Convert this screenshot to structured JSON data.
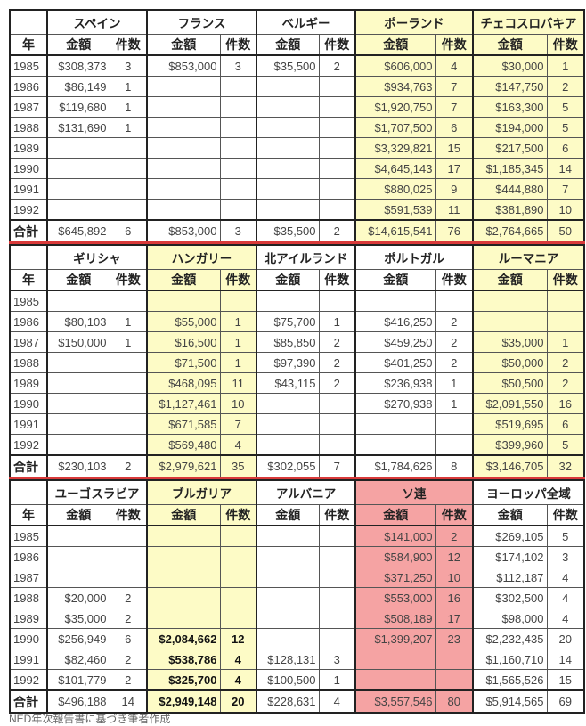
{
  "labels": {
    "year": "年",
    "amount": "金額",
    "count": "件数",
    "total": "合計"
  },
  "years": [
    "1985",
    "1986",
    "1987",
    "1988",
    "1989",
    "1990",
    "1991",
    "1992"
  ],
  "colors": {
    "yellow": "#fdfbc6",
    "red": "#f5a3a3"
  },
  "blocks": [
    {
      "countries": [
        {
          "name": "スペイン",
          "highlight": null,
          "amounts": [
            "$308,373",
            "$86,149",
            "$119,680",
            "$131,690",
            "",
            "",
            "",
            ""
          ],
          "counts": [
            "3",
            "1",
            "1",
            "1",
            "",
            "",
            "",
            ""
          ],
          "total_amount": "$645,892",
          "total_count": "6"
        },
        {
          "name": "フランス",
          "highlight": null,
          "amounts": [
            "$853,000",
            "",
            "",
            "",
            "",
            "",
            "",
            ""
          ],
          "counts": [
            "3",
            "",
            "",
            "",
            "",
            "",
            "",
            ""
          ],
          "total_amount": "$853,000",
          "total_count": "3"
        },
        {
          "name": "ベルギー",
          "highlight": null,
          "amounts": [
            "$35,500",
            "",
            "",
            "",
            "",
            "",
            "",
            ""
          ],
          "counts": [
            "2",
            "",
            "",
            "",
            "",
            "",
            "",
            ""
          ],
          "total_amount": "$35,500",
          "total_count": "2"
        },
        {
          "name": "ポーランド",
          "highlight": "yellow",
          "amounts": [
            "$606,000",
            "$934,763",
            "$1,920,750",
            "$1,707,500",
            "$3,329,821",
            "$4,645,143",
            "$880,025",
            "$591,539"
          ],
          "counts": [
            "4",
            "7",
            "7",
            "6",
            "15",
            "17",
            "9",
            "11"
          ],
          "total_amount": "$14,615,541",
          "total_count": "76"
        },
        {
          "name": "チェコスロバキア",
          "highlight": "yellow",
          "amounts": [
            "$30,000",
            "$147,750",
            "$163,300",
            "$194,000",
            "$217,500",
            "$1,185,345",
            "$444,880",
            "$381,890"
          ],
          "counts": [
            "1",
            "2",
            "5",
            "5",
            "6",
            "14",
            "7",
            "10"
          ],
          "total_amount": "$2,764,665",
          "total_count": "50"
        }
      ]
    },
    {
      "countries": [
        {
          "name": "ギリシャ",
          "highlight": null,
          "amounts": [
            "",
            "$80,103",
            "$150,000",
            "",
            "",
            "",
            "",
            ""
          ],
          "counts": [
            "",
            "1",
            "1",
            "",
            "",
            "",
            "",
            ""
          ],
          "total_amount": "$230,103",
          "total_count": "2"
        },
        {
          "name": "ハンガリー",
          "highlight": "yellow",
          "amounts": [
            "",
            "$55,000",
            "$16,500",
            "$71,500",
            "$468,095",
            "$1,127,461",
            "$671,585",
            "$569,480"
          ],
          "counts": [
            "",
            "1",
            "1",
            "1",
            "11",
            "10",
            "7",
            "4"
          ],
          "total_amount": "$2,979,621",
          "total_count": "35"
        },
        {
          "name": "北アイルランド",
          "highlight": null,
          "amounts": [
            "",
            "$75,700",
            "$85,850",
            "$97,390",
            "$43,115",
            "",
            "",
            ""
          ],
          "counts": [
            "",
            "1",
            "2",
            "2",
            "2",
            "",
            "",
            ""
          ],
          "total_amount": "$302,055",
          "total_count": "7"
        },
        {
          "name": "ポルトガル",
          "highlight": null,
          "amounts": [
            "",
            "$416,250",
            "$459,250",
            "$401,250",
            "$236,938",
            "$270,938",
            "",
            ""
          ],
          "counts": [
            "",
            "2",
            "2",
            "2",
            "1",
            "1",
            "",
            ""
          ],
          "total_amount": "$1,784,626",
          "total_count": "8"
        },
        {
          "name": "ルーマニア",
          "highlight": "yellow",
          "amounts": [
            "",
            "",
            "$35,000",
            "$50,000",
            "$50,500",
            "$2,091,550",
            "$519,695",
            "$399,960"
          ],
          "counts": [
            "",
            "",
            "1",
            "2",
            "2",
            "16",
            "6",
            "5"
          ],
          "total_amount": "$3,146,705",
          "total_count": "32"
        }
      ]
    },
    {
      "countries": [
        {
          "name": "ユーゴスラビア",
          "highlight": null,
          "amounts": [
            "",
            "",
            "",
            "$20,000",
            "$35,000",
            "$256,949",
            "$82,460",
            "$101,779"
          ],
          "counts": [
            "",
            "",
            "",
            "2",
            "2",
            "6",
            "2",
            "2"
          ],
          "total_amount": "$496,188",
          "total_count": "14"
        },
        {
          "name": "ブルガリア",
          "highlight": "yellow",
          "bold": true,
          "amounts": [
            "",
            "",
            "",
            "",
            "",
            "$2,084,662",
            "$538,786",
            "$325,700"
          ],
          "counts": [
            "",
            "",
            "",
            "",
            "",
            "12",
            "4",
            "4"
          ],
          "total_amount": "$2,949,148",
          "total_count": "20"
        },
        {
          "name": "アルバニア",
          "highlight": null,
          "amounts": [
            "",
            "",
            "",
            "",
            "",
            "",
            "$128,131",
            "$100,500"
          ],
          "counts": [
            "",
            "",
            "",
            "",
            "",
            "",
            "3",
            "1"
          ],
          "total_amount": "$228,631",
          "total_count": "4"
        },
        {
          "name": "ソ連",
          "highlight": "red",
          "amounts": [
            "$141,000",
            "$584,900",
            "$371,250",
            "$553,000",
            "$508,189",
            "$1,399,207",
            "",
            ""
          ],
          "counts": [
            "2",
            "12",
            "10",
            "16",
            "17",
            "23",
            "",
            ""
          ],
          "total_amount": "$3,557,546",
          "total_count": "80"
        },
        {
          "name": "ヨーロッパ全域",
          "highlight": null,
          "amounts": [
            "$269,105",
            "$174,102",
            "$112,187",
            "$302,500",
            "$98,000",
            "$2,232,435",
            "$1,160,710",
            "$1,565,526"
          ],
          "counts": [
            "5",
            "3",
            "4",
            "4",
            "4",
            "20",
            "14",
            "15"
          ],
          "total_amount": "$5,914,565",
          "total_count": "69"
        }
      ]
    }
  ],
  "caption": "NED年次報告書に基づき筆者作成"
}
